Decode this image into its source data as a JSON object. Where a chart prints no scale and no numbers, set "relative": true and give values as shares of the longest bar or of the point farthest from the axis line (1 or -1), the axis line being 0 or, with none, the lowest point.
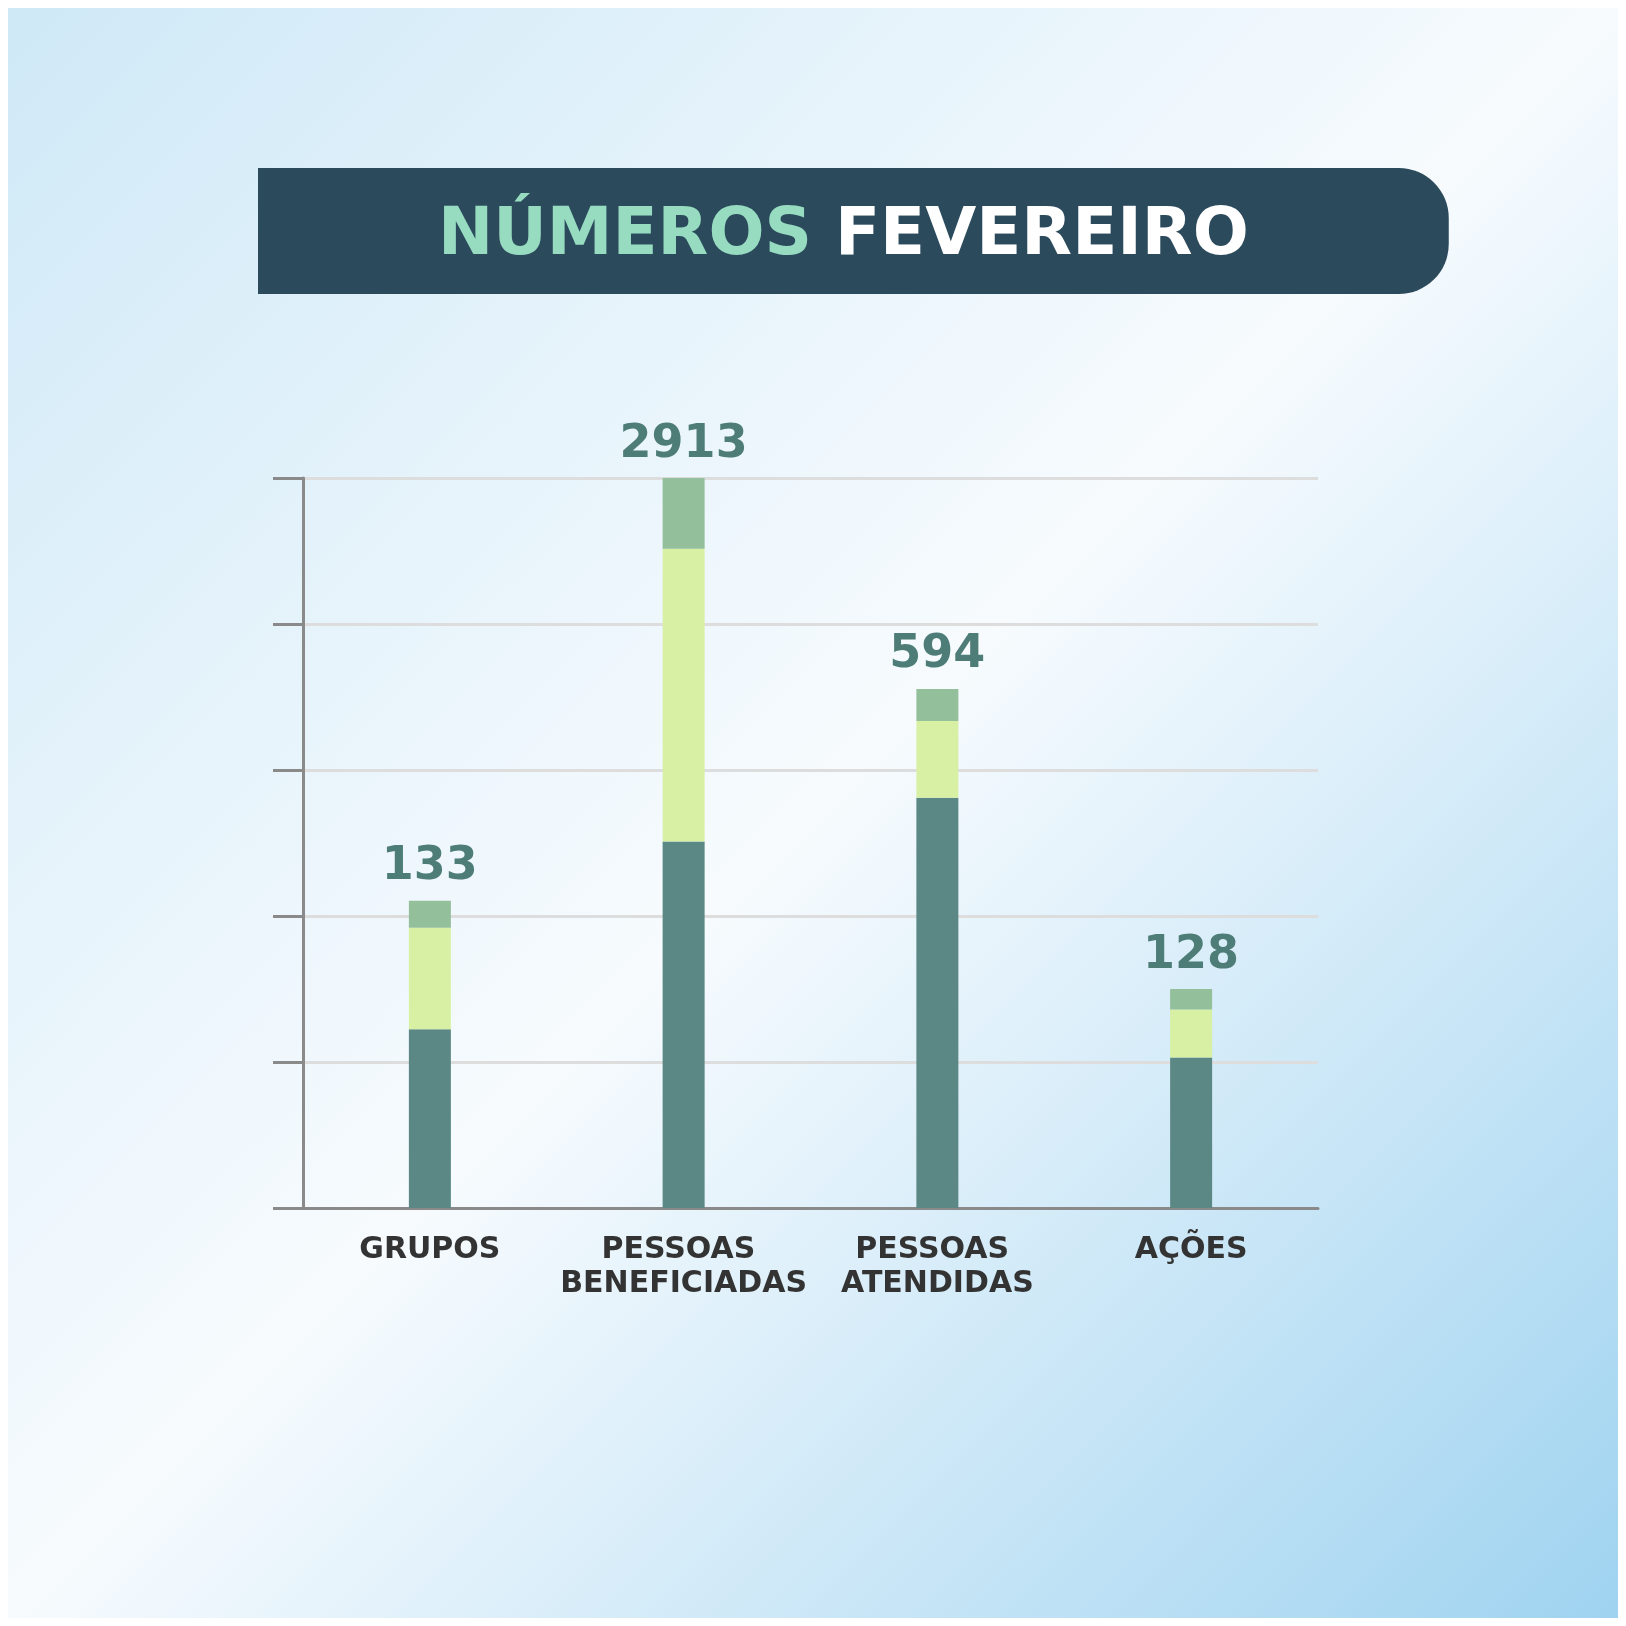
{
  "chart_data": {
    "type": "bar",
    "title": "NÚMEROS FEVEREIRO",
    "categories": [
      "GRUPOS",
      "PESSOAS BENEFICIADAS",
      "PESSOAS ATENDIDAS",
      "AÇÕES"
    ],
    "stacked": true,
    "relative": true,
    "grid": "y",
    "series": [
      {
        "color": "#5b8884",
        "values": [
          0.245,
          0.502,
          0.562,
          0.206
        ]
      },
      {
        "color": "#d8f0a4",
        "values": [
          0.139,
          0.401,
          0.105,
          0.066
        ]
      },
      {
        "color": "#93bf9a",
        "values": [
          0.037,
          0.097,
          0.044,
          0.028
        ]
      }
    ],
    "annotations": [
      {
        "text": "133",
        "x": "GRUPOS",
        "y": 0.421
      },
      {
        "text": "2913",
        "x": "PESSOAS BENEFICIADAS",
        "y": 1
      },
      {
        "text": "594",
        "x": "PESSOAS ATENDIDAS",
        "y": 0.711
      },
      {
        "text": "128",
        "x": "AÇÕES",
        "y": 0.3
      }
    ]
  }
}
